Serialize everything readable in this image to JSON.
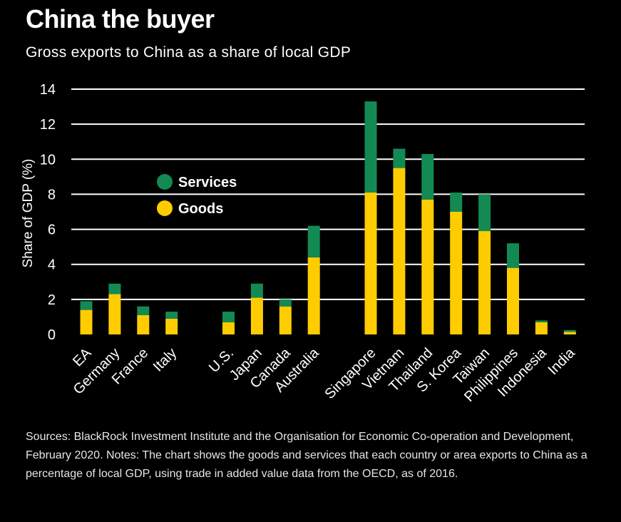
{
  "header": {
    "title": "China the buyer",
    "subtitle": "Gross exports to China as a share of local GDP"
  },
  "footer": {
    "notes": "Sources: BlackRock Investment Institute and the Organisation for Economic Co-operation and Development, February 2020.  Notes: The chart shows the goods and services that each country or area exports to China as a percentage of local GDP, using trade in added value data from the OECD, as of 2016."
  },
  "colors": {
    "background": "#000000",
    "goods": "#FFCC00",
    "services": "#138A53",
    "text": "#ffffff"
  },
  "chart_data": {
    "type": "bar",
    "stacked": true,
    "categories": [
      "EA",
      "Germany",
      "France",
      "Italy",
      "U.S.",
      "Japan",
      "Canada",
      "Australia",
      "Singapore",
      "Vietnam",
      "Thailand",
      "S. Korea",
      "Taiwan",
      "Philippines",
      "Indonesia",
      "India"
    ],
    "groups": [
      [
        0,
        1,
        2,
        3
      ],
      [
        4,
        5,
        6,
        7
      ],
      [
        8,
        9,
        10,
        11,
        12,
        13,
        14,
        15
      ]
    ],
    "series": [
      {
        "name": "Goods",
        "color": "#FFCC00",
        "values": [
          1.4,
          2.3,
          1.1,
          0.9,
          0.7,
          2.1,
          1.6,
          4.4,
          8.1,
          9.5,
          7.7,
          7.0,
          5.9,
          3.8,
          0.7,
          0.15
        ]
      },
      {
        "name": "Services",
        "color": "#138A53",
        "values": [
          0.5,
          0.6,
          0.5,
          0.4,
          0.6,
          0.8,
          0.4,
          1.8,
          5.2,
          1.1,
          2.6,
          1.1,
          2.1,
          1.4,
          0.1,
          0.1
        ]
      }
    ],
    "ylabel": "Share of GDP (%)",
    "xlabel": "",
    "ylim": [
      0,
      14
    ],
    "yticks": [
      0,
      2,
      4,
      6,
      8,
      10,
      12,
      14
    ],
    "grid": true,
    "legend": {
      "placement": "upper-left",
      "order": [
        "Services",
        "Goods"
      ]
    }
  }
}
